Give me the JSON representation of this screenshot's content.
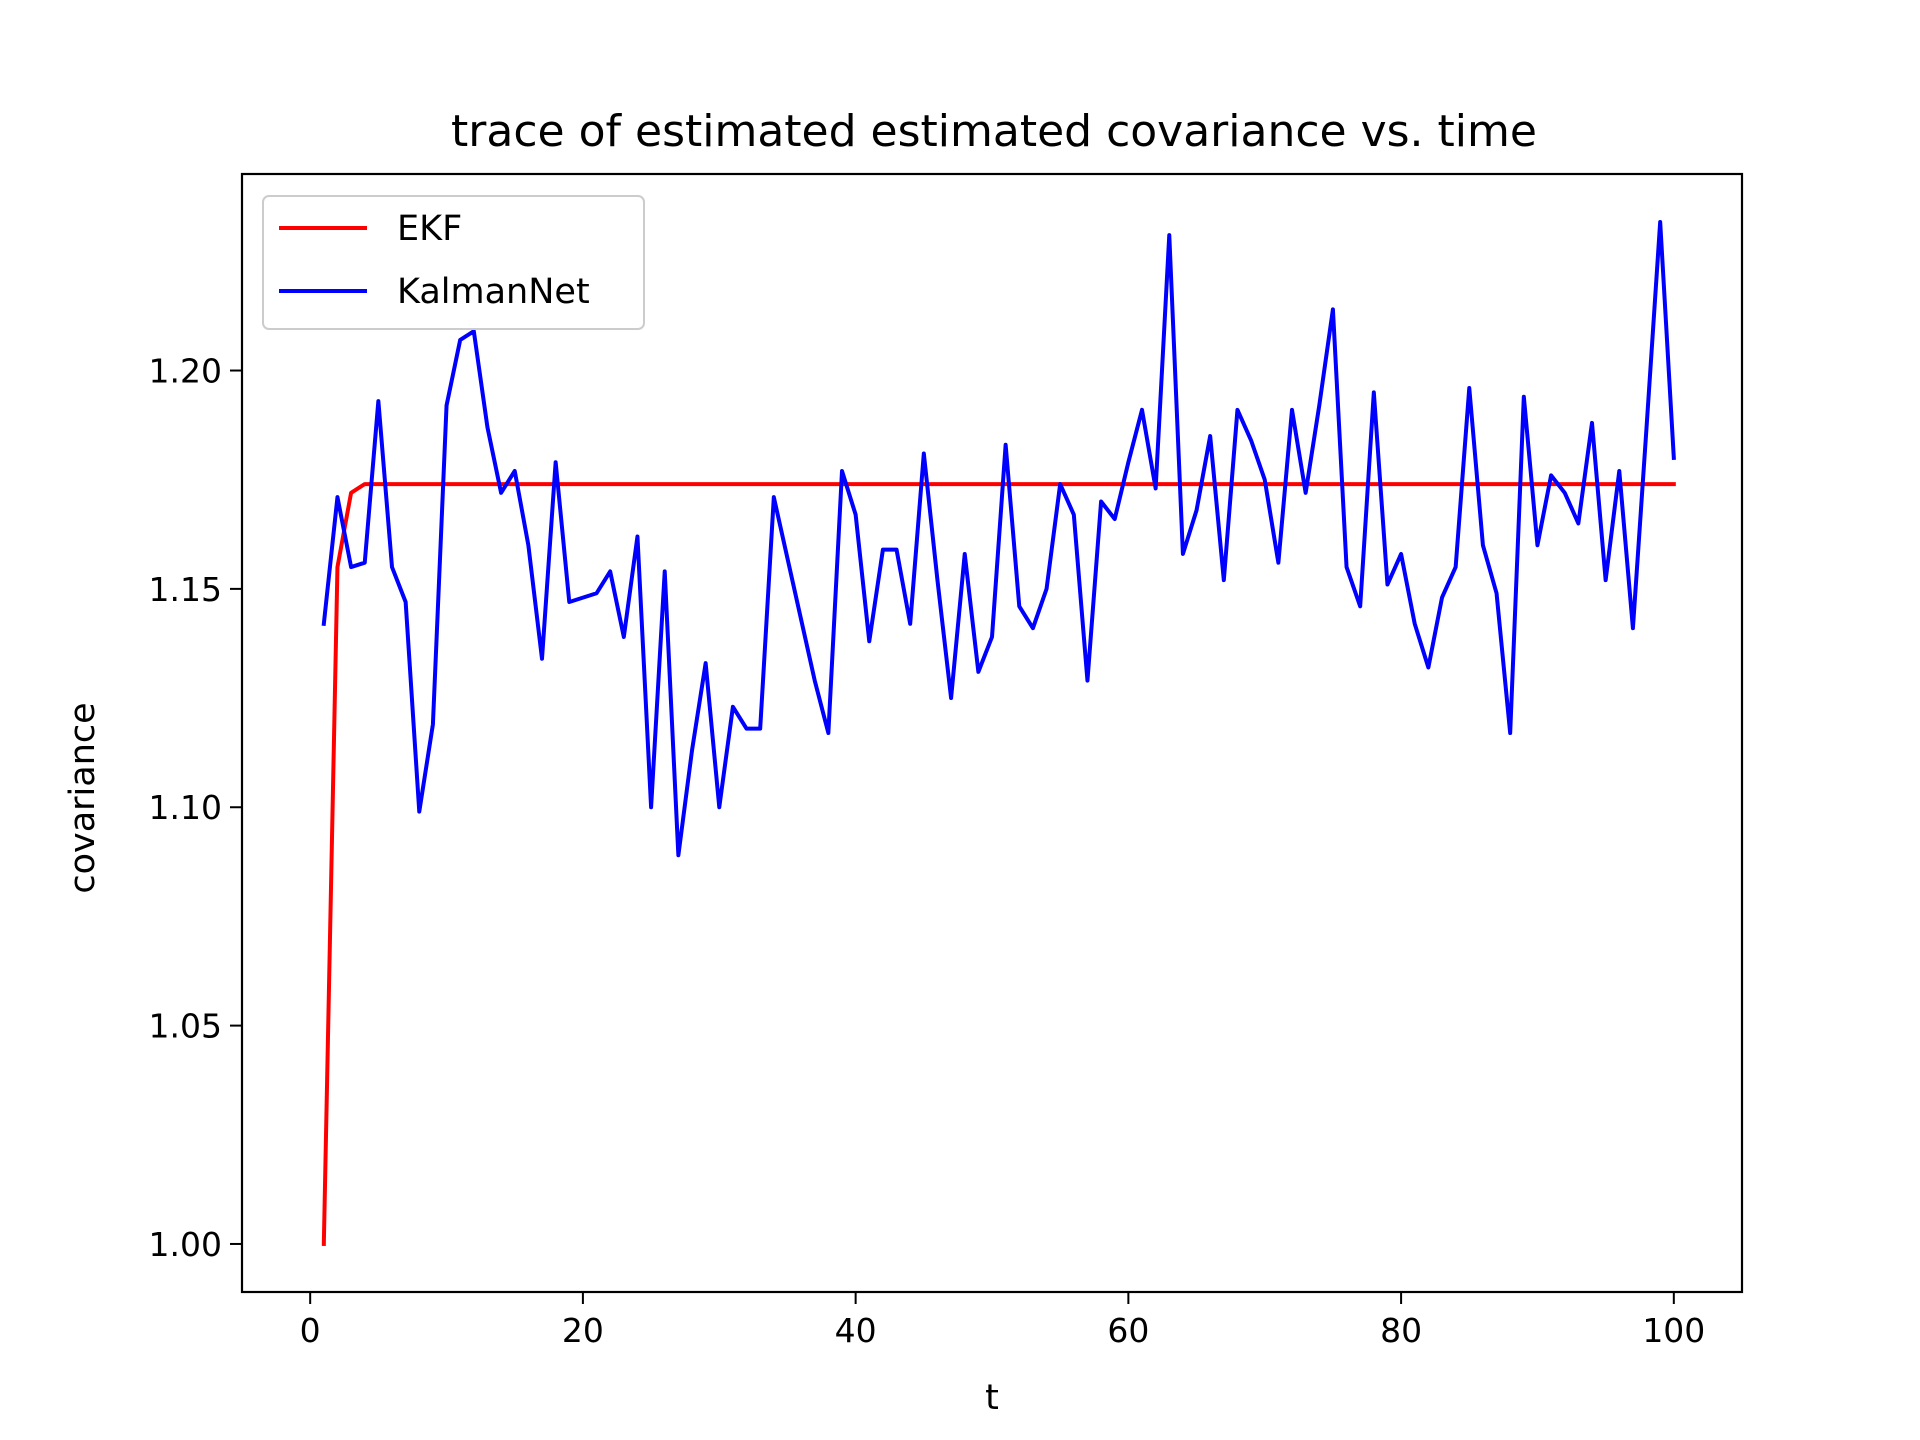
{
  "chart_data": {
    "type": "line",
    "title": "trace of estimated estimated covariance vs. time",
    "xlabel": "t",
    "ylabel": "covariance",
    "xlim": [
      -5,
      105
    ],
    "ylim": [
      0.989,
      1.245
    ],
    "xticks": [
      0,
      20,
      40,
      60,
      80,
      100
    ],
    "xtick_labels": [
      "0",
      "20",
      "40",
      "60",
      "80",
      "100"
    ],
    "yticks": [
      1.0,
      1.05,
      1.1,
      1.15,
      1.2
    ],
    "ytick_labels": [
      "1.00",
      "1.05",
      "1.10",
      "1.15",
      "1.20"
    ],
    "grid": false,
    "legend_position": "top-left",
    "series": [
      {
        "name": "EKF",
        "color": "#ff0000",
        "x": [
          1,
          2,
          3,
          4,
          5,
          100
        ],
        "y": [
          1.0,
          1.155,
          1.172,
          1.174,
          1.174,
          1.174
        ]
      },
      {
        "name": "KalmanNet",
        "color": "#0000ff",
        "x": [
          1,
          2,
          3,
          4,
          5,
          6,
          7,
          8,
          9,
          10,
          11,
          12,
          13,
          14,
          15,
          16,
          17,
          18,
          19,
          20,
          21,
          22,
          23,
          24,
          25,
          26,
          27,
          28,
          29,
          30,
          31,
          32,
          33,
          34,
          35,
          36,
          37,
          38,
          39,
          40,
          41,
          42,
          43,
          44,
          45,
          46,
          47,
          48,
          49,
          50,
          51,
          52,
          53,
          54,
          55,
          56,
          57,
          58,
          59,
          60,
          61,
          62,
          63,
          64,
          65,
          66,
          67,
          68,
          69,
          70,
          71,
          72,
          73,
          74,
          75,
          76,
          77,
          78,
          79,
          80,
          81,
          82,
          83,
          84,
          85,
          86,
          87,
          88,
          89,
          90,
          91,
          92,
          93,
          94,
          95,
          96,
          97,
          98,
          99,
          100
        ],
        "y": [
          1.142,
          1.171,
          1.155,
          1.156,
          1.193,
          1.155,
          1.147,
          1.099,
          1.119,
          1.192,
          1.207,
          1.209,
          1.187,
          1.172,
          1.177,
          1.16,
          1.134,
          1.179,
          1.147,
          1.148,
          1.149,
          1.154,
          1.139,
          1.162,
          1.1,
          1.154,
          1.089,
          1.113,
          1.133,
          1.1,
          1.123,
          1.118,
          1.118,
          1.171,
          1.157,
          1.143,
          1.129,
          1.117,
          1.177,
          1.167,
          1.138,
          1.159,
          1.159,
          1.142,
          1.181,
          1.152,
          1.125,
          1.158,
          1.131,
          1.139,
          1.183,
          1.146,
          1.141,
          1.15,
          1.174,
          1.167,
          1.129,
          1.17,
          1.166,
          1.179,
          1.191,
          1.173,
          1.231,
          1.158,
          1.168,
          1.185,
          1.152,
          1.191,
          1.184,
          1.175,
          1.156,
          1.191,
          1.172,
          1.192,
          1.214,
          1.155,
          1.146,
          1.195,
          1.151,
          1.158,
          1.142,
          1.132,
          1.148,
          1.155,
          1.196,
          1.16,
          1.149,
          1.117,
          1.194,
          1.16,
          1.176,
          1.172,
          1.165,
          1.188,
          1.152,
          1.177,
          1.141,
          1.187,
          1.234,
          1.18
        ]
      }
    ]
  }
}
